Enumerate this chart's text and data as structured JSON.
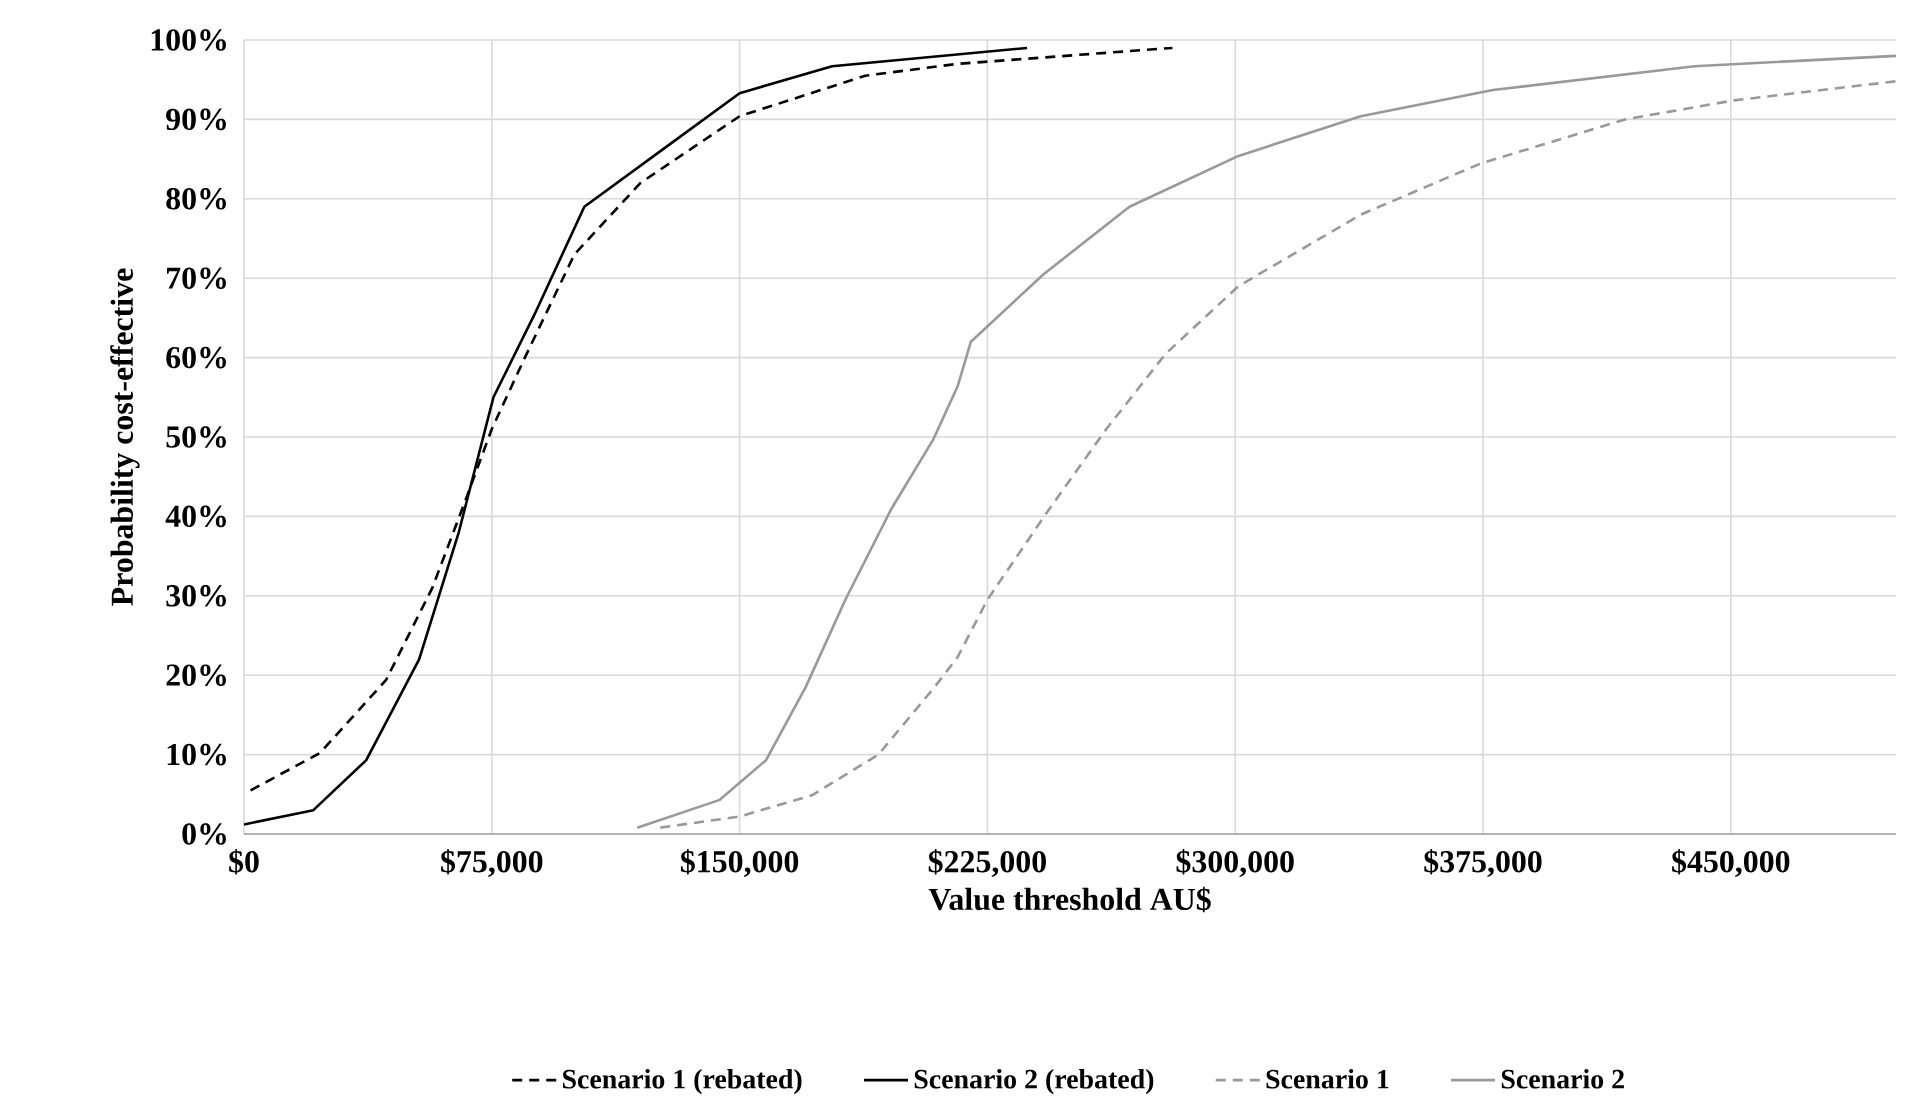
{
  "chart_data": {
    "type": "line",
    "xlabel": "Value threshold AU$",
    "ylabel": "Probability cost-effective",
    "xlim": [
      0,
      500000
    ],
    "ylim": [
      0,
      100
    ],
    "xticks": [
      {
        "value": 0,
        "label": "$0"
      },
      {
        "value": 75000,
        "label": "$75,000"
      },
      {
        "value": 150000,
        "label": "$150,000"
      },
      {
        "value": 225000,
        "label": "$225,000"
      },
      {
        "value": 300000,
        "label": "$300,000"
      },
      {
        "value": 375000,
        "label": "$375,000"
      },
      {
        "value": 450000,
        "label": "$450,000"
      }
    ],
    "yticks": [
      {
        "value": 0,
        "label": "0%"
      },
      {
        "value": 10,
        "label": "10%"
      },
      {
        "value": 20,
        "label": "20%"
      },
      {
        "value": 30,
        "label": "30%"
      },
      {
        "value": 40,
        "label": "40%"
      },
      {
        "value": 50,
        "label": "50%"
      },
      {
        "value": 60,
        "label": "60%"
      },
      {
        "value": 70,
        "label": "70%"
      },
      {
        "value": 80,
        "label": "80%"
      },
      {
        "value": 90,
        "label": "90%"
      },
      {
        "value": 100,
        "label": "100%"
      }
    ],
    "grid": true,
    "legend": "bottom",
    "marker": "none",
    "series": [
      {
        "name": "Scenario 1 (rebated)",
        "color": "#000000",
        "line_style": "dashed",
        "x": [
          2000,
          23000,
          43000,
          57000,
          67000,
          75000,
          85000,
          100000,
          120000,
          150000,
          188000,
          216000,
          281000
        ],
        "values": [
          5.5,
          10.2,
          19.4,
          31,
          42,
          51,
          60,
          73,
          82,
          90.4,
          95.5,
          97,
          99
        ]
      },
      {
        "name": "Scenario 2 (rebated)",
        "color": "#000000",
        "line_style": "solid",
        "x": [
          0,
          21000,
          37000,
          53000,
          65000,
          75500,
          88000,
          103000,
          128000,
          150000,
          178000,
          237000
        ],
        "values": [
          1.2,
          3,
          9.3,
          22,
          38,
          55,
          65.5,
          79,
          86.6,
          93.3,
          96.7,
          99
        ]
      },
      {
        "name": "Scenario 1",
        "color": "#999999",
        "line_style": "dashed",
        "x": [
          126000,
          150000,
          172000,
          192000,
          209000,
          216000,
          225000,
          243000,
          261000,
          279000,
          301000,
          338000,
          374000,
          418000,
          451000,
          500000
        ],
        "values": [
          0.8,
          2.2,
          4.9,
          10,
          18.5,
          22.3,
          29.5,
          40.5,
          51,
          60.5,
          69,
          78,
          84.4,
          90,
          92.4,
          94.8
        ]
      },
      {
        "name": "Scenario 2",
        "color": "#999999",
        "line_style": "solid",
        "x": [
          119000,
          144000,
          158000,
          170000,
          182000,
          196000,
          208500,
          216000,
          220000,
          242000,
          268000,
          301000,
          338000,
          378000,
          439000,
          500000
        ],
        "values": [
          0.8,
          4.3,
          9.3,
          18.5,
          29.5,
          41,
          49.6,
          56.4,
          62,
          70.5,
          79,
          85.4,
          90.4,
          93.7,
          96.7,
          98
        ]
      }
    ]
  }
}
